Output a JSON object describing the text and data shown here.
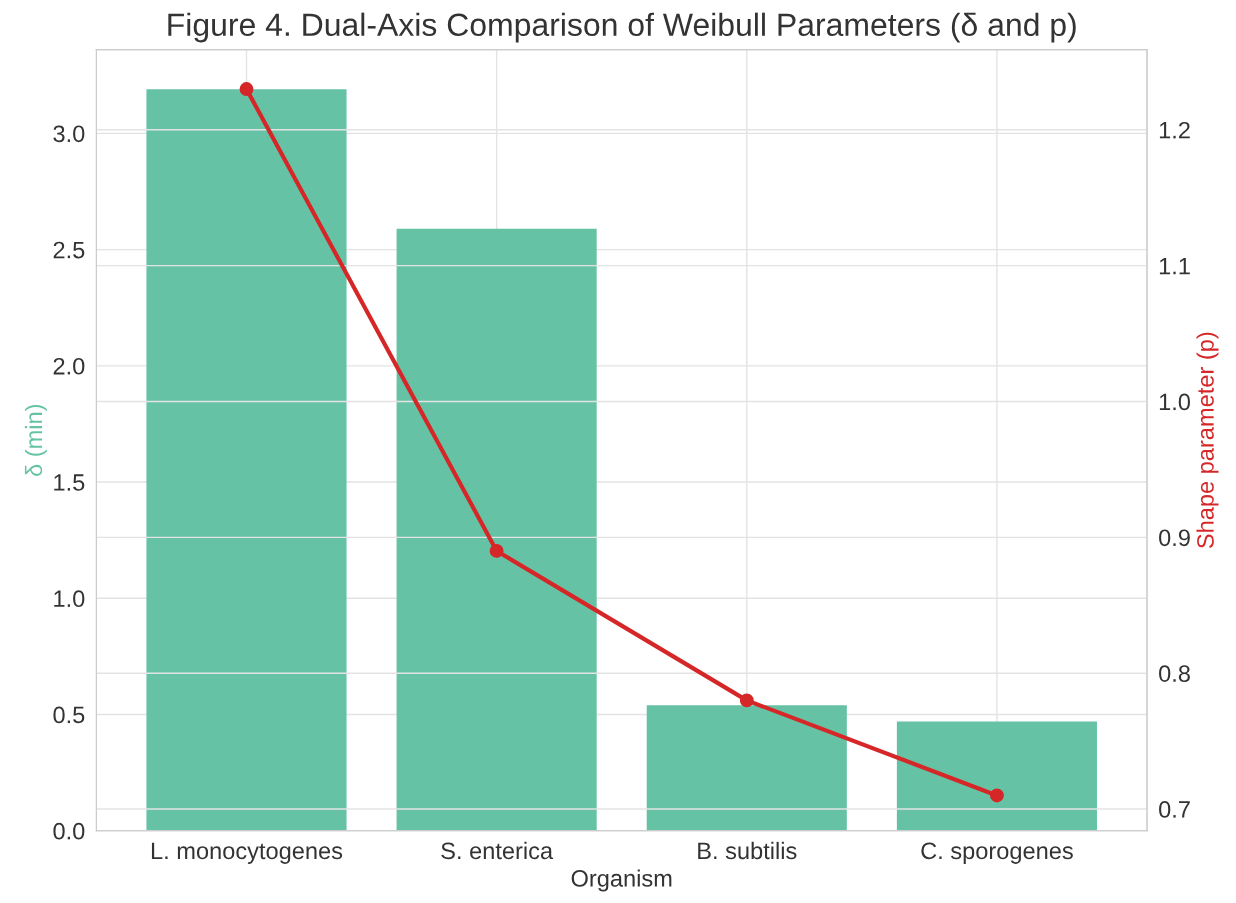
{
  "chart_data": {
    "type": "bar",
    "title": "Figure 4. Dual-Axis Comparison of Weibull Parameters (δ and p)",
    "xlabel": "Organism",
    "ylabel": "δ (min)",
    "y2label": "Shape parameter (p)",
    "categories": [
      "L. monocytogenes",
      "S. enterica",
      "B. subtilis",
      "C. sporogenes"
    ],
    "series": [
      {
        "color": "#66c2a5",
        "values": [
          3.19,
          2.59,
          0.54,
          0.47
        ]
      },
      {
        "type": "line",
        "axis": "y2",
        "color": "#d62728",
        "marker": "circle",
        "values": [
          1.23,
          0.89,
          0.78,
          0.71
        ]
      }
    ],
    "ylim": [
      0,
      3.36
    ],
    "yticks": [
      {
        "value": 0,
        "label": "0.0"
      },
      0.5,
      {
        "value": 1,
        "label": "1.0"
      },
      1.5,
      {
        "value": 2,
        "label": "2.0"
      },
      2.5,
      {
        "value": 3,
        "label": "3.0"
      }
    ],
    "y2lim": [
      0.684,
      1.259
    ],
    "y2ticks": [
      0.7,
      0.8,
      0.9,
      {
        "value": 1,
        "label": "1.0"
      },
      1.1,
      1.2
    ],
    "grid": true
  }
}
